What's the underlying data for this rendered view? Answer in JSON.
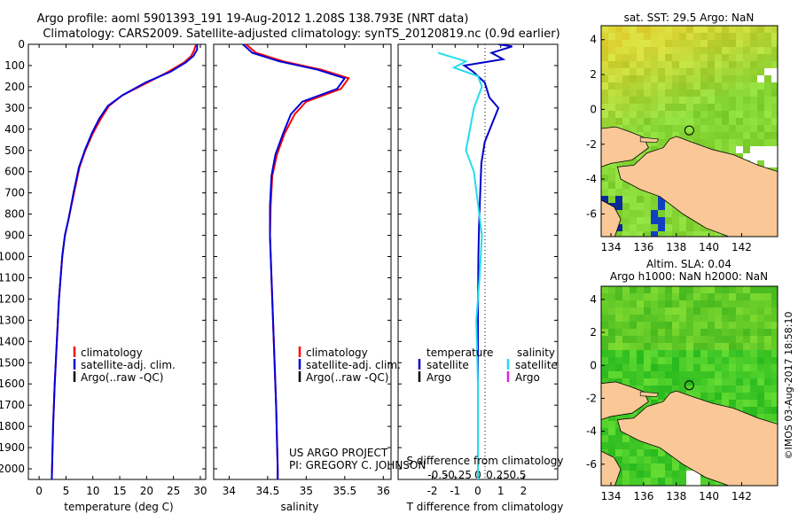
{
  "header": {
    "title_line1": "Argo profile: aoml 5901393_191 19-Aug-2012 1.208S 138.793E (NRT data)",
    "title_line2": "Climatology: CARS2009. Satellite-adjusted climatology: synTS_20120819.nc (0.9d earlier)"
  },
  "side_stamp": "©IMOS 03-Aug-2017 18:58:10",
  "chart_data": [
    {
      "type": "line",
      "panel": "temperature",
      "xlabel": "temperature (deg C)",
      "xlim": [
        -2,
        31
      ],
      "xticks": [
        0,
        5,
        10,
        15,
        20,
        25,
        30
      ],
      "ylim": [
        0,
        2050
      ],
      "yticks": [
        0,
        100,
        200,
        300,
        400,
        500,
        600,
        700,
        800,
        900,
        1000,
        1100,
        1200,
        1300,
        1400,
        1500,
        1600,
        1700,
        1800,
        1900,
        2000
      ],
      "legend": [
        "climatology",
        "satellite-adj. clim.",
        "Argo(..raw -QC)"
      ],
      "series": [
        {
          "name": "climatology",
          "color": "#ff0000",
          "points": [
            [
              29.2,
              0
            ],
            [
              28.8,
              30
            ],
            [
              28.3,
              55
            ],
            [
              27.0,
              85
            ],
            [
              24.0,
              130
            ],
            [
              20.2,
              180
            ],
            [
              15.5,
              240
            ],
            [
              13.0,
              290
            ],
            [
              11.5,
              350
            ],
            [
              10.0,
              420
            ],
            [
              8.6,
              500
            ],
            [
              7.5,
              580
            ],
            [
              6.5,
              700
            ],
            [
              5.5,
              820
            ],
            [
              4.8,
              900
            ],
            [
              4.3,
              1000
            ],
            [
              3.7,
              1200
            ],
            [
              3.3,
              1400
            ],
            [
              2.9,
              1600
            ],
            [
              2.6,
              1800
            ],
            [
              2.4,
              2000
            ],
            [
              2.35,
              2050
            ]
          ]
        },
        {
          "name": "satellite-adj. clim.",
          "color": "#0000dd",
          "points": [
            [
              29.4,
              0
            ],
            [
              29.4,
              25
            ],
            [
              28.7,
              55
            ],
            [
              27.3,
              85
            ],
            [
              24.4,
              130
            ],
            [
              19.8,
              180
            ],
            [
              15.5,
              240
            ],
            [
              12.8,
              290
            ],
            [
              11.2,
              350
            ],
            [
              9.8,
              420
            ],
            [
              8.5,
              500
            ],
            [
              7.4,
              580
            ],
            [
              6.4,
              700
            ],
            [
              5.5,
              820
            ],
            [
              4.8,
              900
            ],
            [
              4.3,
              1000
            ],
            [
              3.7,
              1200
            ],
            [
              3.3,
              1400
            ],
            [
              2.9,
              1600
            ],
            [
              2.6,
              1800
            ],
            [
              2.4,
              2000
            ],
            [
              2.35,
              2050
            ]
          ]
        }
      ]
    },
    {
      "type": "line",
      "panel": "salinity",
      "xlabel": "salinity",
      "xlim": [
        33.8,
        36.1
      ],
      "xticks": [
        34,
        34.5,
        35,
        35.5,
        36
      ],
      "ylim": [
        0,
        2050
      ],
      "legend": [
        "climatology",
        "satellite-adj. clim.",
        "Argo(..raw -QC)"
      ],
      "annotation_line1": "US ARGO PROJECT",
      "annotation_line2": "PI: GREGORY C. JOHNSON",
      "series": [
        {
          "name": "climatology",
          "color": "#ff0000",
          "points": [
            [
              34.22,
              0
            ],
            [
              34.35,
              40
            ],
            [
              34.7,
              80
            ],
            [
              35.2,
              120
            ],
            [
              35.55,
              160
            ],
            [
              35.45,
              210
            ],
            [
              35.0,
              270
            ],
            [
              34.85,
              330
            ],
            [
              34.72,
              420
            ],
            [
              34.62,
              520
            ],
            [
              34.56,
              620
            ],
            [
              34.54,
              760
            ],
            [
              34.53,
              900
            ],
            [
              34.55,
              1100
            ],
            [
              34.58,
              1400
            ],
            [
              34.61,
              1700
            ],
            [
              34.63,
              2000
            ],
            [
              34.63,
              2050
            ]
          ]
        },
        {
          "name": "satellite-adj. clim.",
          "color": "#0000dd",
          "points": [
            [
              34.18,
              0
            ],
            [
              34.3,
              40
            ],
            [
              34.65,
              80
            ],
            [
              35.15,
              120
            ],
            [
              35.5,
              160
            ],
            [
              35.4,
              210
            ],
            [
              34.95,
              270
            ],
            [
              34.8,
              330
            ],
            [
              34.7,
              420
            ],
            [
              34.6,
              520
            ],
            [
              34.55,
              620
            ],
            [
              34.53,
              760
            ],
            [
              34.53,
              900
            ],
            [
              34.55,
              1100
            ],
            [
              34.58,
              1400
            ],
            [
              34.61,
              1700
            ],
            [
              34.63,
              2000
            ],
            [
              34.63,
              2050
            ]
          ]
        }
      ]
    },
    {
      "type": "line",
      "panel": "difference",
      "xlabel": "T difference from climatology",
      "xlabel_top": "S difference from climatology",
      "t_xlim": [
        -3.5,
        3.5
      ],
      "t_xticks": [
        -2,
        -1,
        0,
        1,
        2
      ],
      "s_xticks": [
        -0.5,
        -0.25,
        0,
        0.25,
        0.5
      ],
      "s_xtick_labels": [
        "-0.5",
        "-0.25",
        "0",
        "0.25",
        "0.5"
      ],
      "ylim": [
        0,
        2050
      ],
      "legend_temperature": {
        "title": "temperature",
        "items": [
          "satellite",
          "Argo"
        ]
      },
      "legend_salinity": {
        "title": "salinity",
        "items": [
          "satellite",
          "Argo"
        ]
      },
      "series": [
        {
          "name": "T satellite",
          "color": "#0000cc",
          "points": [
            [
              0.9,
              0
            ],
            [
              1.5,
              10
            ],
            [
              0.6,
              40
            ],
            [
              1.1,
              70
            ],
            [
              -0.6,
              100
            ],
            [
              -0.2,
              130
            ],
            [
              0.3,
              180
            ],
            [
              0.5,
              250
            ],
            [
              0.9,
              300
            ],
            [
              0.6,
              380
            ],
            [
              0.3,
              460
            ],
            [
              0.15,
              560
            ],
            [
              0.1,
              700
            ],
            [
              0.05,
              850
            ],
            [
              0.02,
              1000
            ],
            [
              0,
              1300
            ],
            [
              0,
              1700
            ],
            [
              0,
              2050
            ]
          ]
        },
        {
          "name": "S satellite",
          "color": "#22ddee",
          "points": [
            [
              -0.5,
              40
            ],
            [
              -0.15,
              80
            ],
            [
              -0.3,
              110
            ],
            [
              0,
              150
            ],
            [
              0.05,
              200
            ],
            [
              -0.05,
              300
            ],
            [
              -0.1,
              400
            ],
            [
              -0.15,
              500
            ],
            [
              -0.05,
              600
            ],
            [
              0,
              750
            ],
            [
              0.05,
              900
            ],
            [
              0.02,
              1100
            ],
            [
              -0.02,
              1300
            ],
            [
              0,
              1600
            ],
            [
              0,
              1900
            ],
            [
              0,
              2050
            ]
          ]
        }
      ]
    },
    {
      "type": "heatmap",
      "panel": "map_sst",
      "title": "sat. SST: 29.5 Argo: NaN",
      "xticks": [
        134,
        136,
        138,
        140,
        142
      ],
      "yticks": [
        4,
        2,
        0,
        -2,
        -4,
        -6
      ],
      "xlim": [
        133.4,
        144.2
      ],
      "ylim": [
        -7.3,
        4.8
      ],
      "marker": {
        "lon": 138.793,
        "lat": -1.208
      }
    },
    {
      "type": "heatmap",
      "panel": "map_sla",
      "title_line1": "Altim. SLA: 0.04",
      "title_line2": "Argo h1000: NaN h2000: NaN",
      "xticks": [
        134,
        136,
        138,
        140,
        142
      ],
      "yticks": [
        4,
        2,
        0,
        -2,
        -4,
        -6
      ],
      "xlim": [
        133.4,
        144.2
      ],
      "ylim": [
        -7.3,
        4.8
      ],
      "marker": {
        "lon": 138.793,
        "lat": -1.208
      }
    }
  ]
}
